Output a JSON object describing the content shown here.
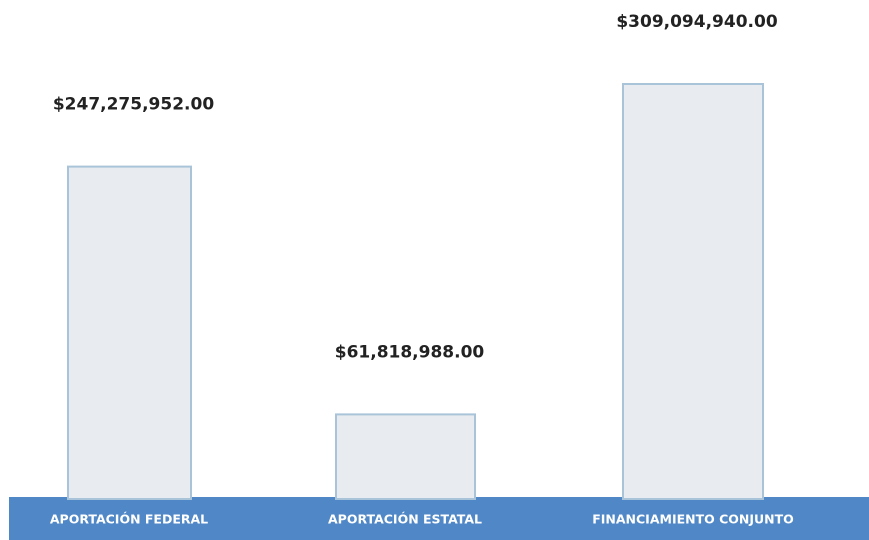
{
  "chart_data": {
    "type": "bar",
    "categories": [
      "APORTACIÓN FEDERAL",
      "APORTACIÓN ESTATAL",
      "FINANCIAMIENTO CONJUNTO"
    ],
    "values": [
      247275952,
      61818988,
      309094940
    ],
    "value_labels": [
      "$247,275,952.00",
      "$61,818,988.00",
      "$309,094,940.00"
    ],
    "color": "#e8ecf0",
    "edge_color": "#a9c4d8",
    "axis_color": "#5087c7"
  }
}
